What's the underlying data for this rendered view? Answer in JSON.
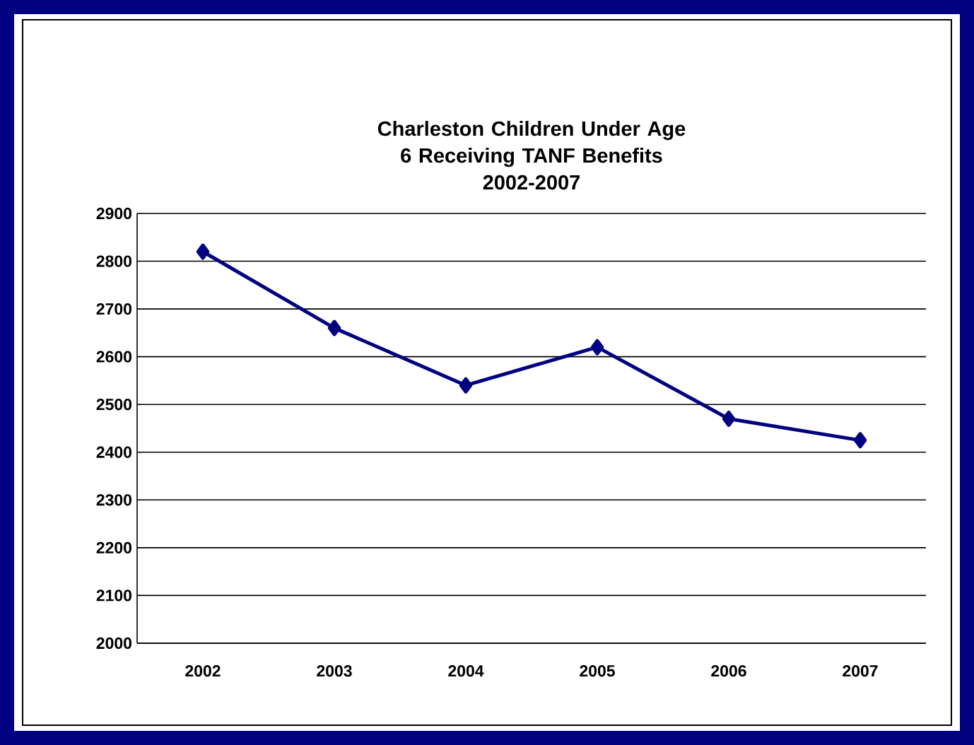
{
  "chart_data": {
    "type": "line",
    "title": "Charleston Children Under Age 6 Receiving TANF Benefits",
    "subtitle": "2002-2007",
    "categories": [
      "2002",
      "2003",
      "2004",
      "2005",
      "2006",
      "2007"
    ],
    "series": [
      {
        "color": "#000080",
        "values": [
          2820,
          2660,
          2540,
          2620,
          2470,
          2425
        ]
      }
    ],
    "ylim": [
      2000,
      2900
    ],
    "yticks": [
      2000,
      2100,
      2200,
      2300,
      2400,
      2500,
      2600,
      2700,
      2800,
      2900
    ],
    "grid": "y",
    "marker": "diamond",
    "line_style": "solid"
  }
}
